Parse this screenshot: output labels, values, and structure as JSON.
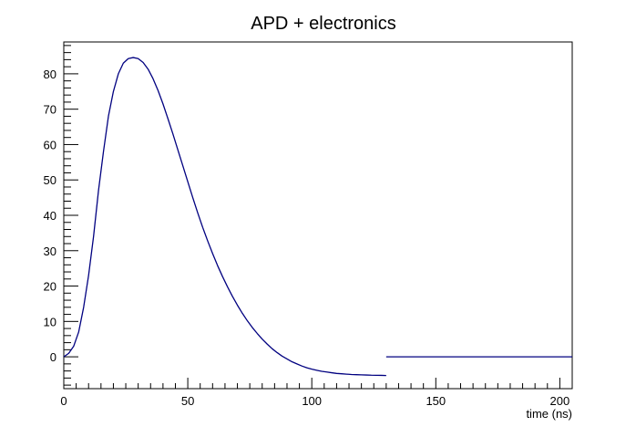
{
  "chart_data": {
    "type": "line",
    "title": "APD + electronics",
    "xlabel": "time (ns)",
    "ylabel": "",
    "xlim": [
      0,
      205
    ],
    "ylim": [
      -9,
      89
    ],
    "x_ticks": [
      0,
      50,
      100,
      150,
      200
    ],
    "y_ticks": [
      0,
      10,
      20,
      30,
      40,
      50,
      60,
      70,
      80
    ],
    "grid": false,
    "legend": "none",
    "series": [
      {
        "x": [
          0,
          2,
          4,
          6,
          8,
          10,
          12,
          14,
          16,
          18,
          20,
          22,
          24,
          26,
          28,
          30,
          32,
          34,
          36,
          38,
          40,
          42,
          44,
          46,
          48,
          50,
          52,
          54,
          56,
          58,
          60,
          62,
          64,
          66,
          68,
          70,
          72,
          74,
          76,
          78,
          80,
          82,
          84,
          86,
          88,
          90,
          92,
          94,
          96,
          98,
          100,
          102,
          104,
          106,
          108,
          110,
          112,
          114,
          116,
          118,
          120,
          122,
          124,
          126,
          128,
          130
        ],
        "y": [
          0,
          1,
          3,
          7,
          14,
          23,
          34,
          47,
          58,
          68,
          75,
          80,
          83,
          84.3,
          84.6,
          84.3,
          83.2,
          81.3,
          78.6,
          75.3,
          71.5,
          67.3,
          63,
          58.5,
          54,
          49.5,
          45,
          40.7,
          36.6,
          32.8,
          29.2,
          25.8,
          22.7,
          19.8,
          17.1,
          14.6,
          12.3,
          10.2,
          8.3,
          6.6,
          5.0,
          3.6,
          2.3,
          1.2,
          0.2,
          -0.6,
          -1.4,
          -2.0,
          -2.6,
          -3.1,
          -3.5,
          -3.8,
          -4.1,
          -4.3,
          -4.5,
          -4.7,
          -4.8,
          -4.9,
          -5.0,
          -5.05,
          -5.1,
          -5.15,
          -5.2,
          -5.22,
          -5.25,
          -5.3
        ],
        "color": "#000080"
      },
      {
        "x": [
          130,
          205
        ],
        "y": [
          0,
          0
        ],
        "color": "#000080"
      }
    ]
  }
}
